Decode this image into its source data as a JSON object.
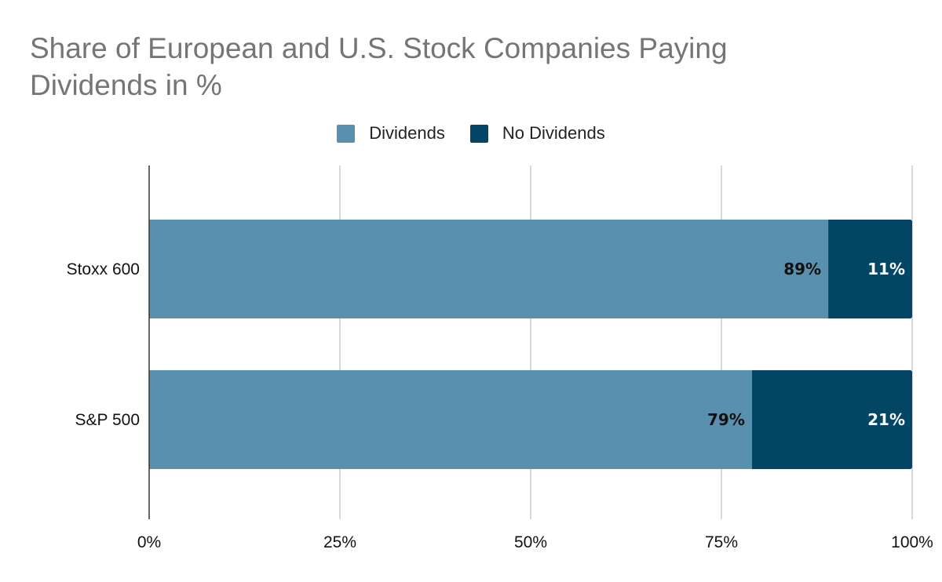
{
  "chart_data": {
    "type": "bar",
    "orientation": "horizontal",
    "stacked": true,
    "title": "Share of European and U.S. Stock Companies Paying Dividends in %",
    "categories": [
      "Stoxx 600",
      "S&P 500"
    ],
    "series": [
      {
        "name": "Dividends",
        "values": [
          89,
          79
        ],
        "labels": [
          "89%",
          "79%"
        ],
        "color": "#5990ad",
        "label_color": "#111111"
      },
      {
        "name": "No Dividends",
        "values": [
          11,
          21
        ],
        "labels": [
          "11%",
          "21%"
        ],
        "color": "#024564",
        "label_color": "#ffffff"
      }
    ],
    "x_ticks": [
      "0%",
      "25%",
      "50%",
      "75%",
      "100%"
    ],
    "xlim": [
      0,
      100
    ],
    "grid": true,
    "legend_position": "top-center"
  }
}
